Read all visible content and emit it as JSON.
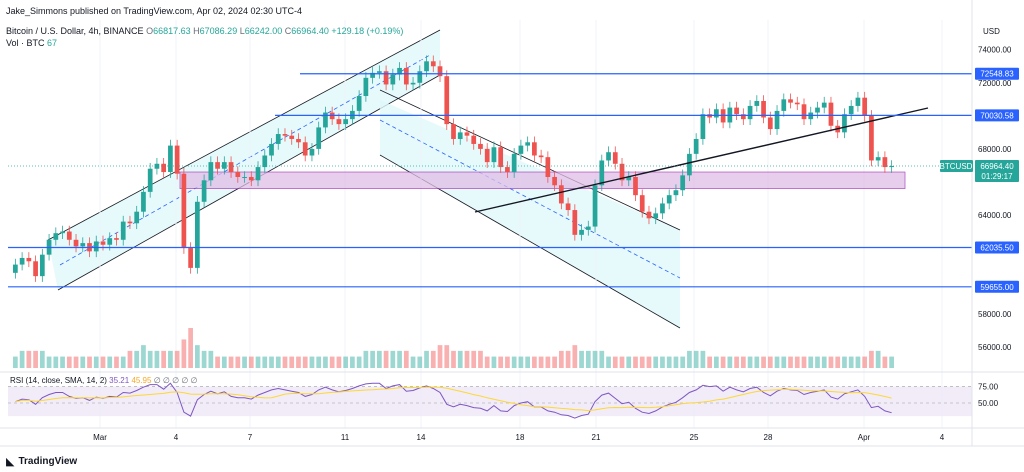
{
  "header": {
    "publisher": "Jake_Simmons published on TradingView.com, Apr 02, 2024 02:30 UTC-4",
    "symbol": "Bitcoin / U.S. Dollar, 4h, BINANCE",
    "ohlc": {
      "o_label": "O",
      "o": "66817.63",
      "h_label": "H",
      "h": "67086.29",
      "l_label": "L",
      "l": "66242.00",
      "c_label": "C",
      "c": "66964.40",
      "change": "+129.18 (+0.19%)"
    },
    "vol_label": "Vol · BTC",
    "vol_value": "67",
    "rsi_label": "RSI (14, close, SMA, 14, 2)",
    "rsi_value": "35.21",
    "rsi_ma": "45.95",
    "rsi_na": [
      "∅",
      "∅",
      "∅",
      "∅",
      "∅"
    ]
  },
  "currency": "USD",
  "footer_brand": "TradingView",
  "colors": {
    "up": "#26a69a",
    "down": "#ef5350",
    "hline": "#2962ff",
    "rsi": "#7e57c2",
    "rsi_ma": "#fdd835",
    "channel_fill": "#e0f7fa",
    "zone_fill": "#e1bee7",
    "zone_border": "#9c27b0"
  },
  "chart_data": {
    "type": "candlestick",
    "title": "Bitcoin / U.S. Dollar, 4h, BINANCE",
    "x_tick_labels": [
      "Mar",
      "4",
      "7",
      "11",
      "14",
      "18",
      "21",
      "25",
      "28",
      "Apr",
      "4"
    ],
    "price_ticks": [
      "74000.00",
      "72000.00",
      "68000.00",
      "64000.00",
      "58000.00",
      "56000.00"
    ],
    "price_range": [
      54500,
      75800
    ],
    "horizontal_levels": [
      {
        "label": "72548.83",
        "value": 72548.83
      },
      {
        "label": "70030.58",
        "value": 70030.58
      },
      {
        "label": "62035.50",
        "value": 62035.5
      },
      {
        "label": "59655.00",
        "value": 59655.0
      }
    ],
    "last_price": {
      "symbol": "BTCUSD",
      "value": "66964.40",
      "countdown": "01:29:17",
      "price": 66964.4
    },
    "support_zone": {
      "low": 65600,
      "high": 66600
    },
    "close_series": [
      61000,
      61400,
      61200,
      60300,
      61600,
      62500,
      62900,
      63000,
      62500,
      62100,
      62300,
      61800,
      62400,
      62200,
      62600,
      62500,
      63600,
      63500,
      64200,
      65400,
      66800,
      67100,
      66600,
      68200,
      66500,
      62000,
      60800,
      64800,
      66100,
      67200,
      66800,
      67200,
      66600,
      66300,
      66300,
      66100,
      66900,
      67600,
      68300,
      68900,
      68800,
      68600,
      68400,
      67600,
      68000,
      69300,
      70200,
      69800,
      69500,
      69800,
      70300,
      71200,
      72300,
      72600,
      72700,
      71900,
      72500,
      72900,
      71900,
      72000,
      72700,
      73300,
      73000,
      72400,
      69500,
      68600,
      69000,
      68800,
      68300,
      68000,
      67200,
      68100,
      66900,
      66600,
      67700,
      68200,
      68400,
      67600,
      67500,
      66300,
      65800,
      64700,
      64300,
      62800,
      63100,
      63300,
      65800,
      67300,
      67800,
      67100,
      66100,
      66300,
      65200,
      64200,
      63800,
      64100,
      64700,
      65200,
      65500,
      66400,
      67700,
      68600,
      70100,
      69900,
      70400,
      69600,
      70500,
      70100,
      69800,
      70600,
      70900,
      69900,
      69200,
      70300,
      71000,
      70800,
      70700,
      69800,
      70200,
      70500,
      70800,
      69400,
      69000,
      70100,
      70600,
      71100,
      70000,
      67300,
      67500,
      66900,
      66964
    ],
    "volume_relative": [
      2,
      3,
      3,
      3,
      3,
      2,
      2,
      2,
      2,
      2,
      2,
      2,
      2,
      2,
      2,
      2,
      2,
      3,
      3,
      4,
      3,
      3,
      3,
      3,
      3,
      5,
      7,
      4,
      3,
      3,
      2,
      2,
      2,
      2,
      2,
      2,
      2,
      2,
      2,
      2,
      2,
      2,
      2,
      2,
      2,
      2,
      2,
      2,
      2,
      2,
      2,
      2,
      3,
      3,
      3,
      3,
      3,
      3,
      3,
      2,
      2,
      3,
      3,
      4,
      4,
      3,
      3,
      3,
      3,
      3,
      2,
      2,
      2,
      2,
      2,
      2,
      2,
      2,
      2,
      2,
      2,
      3,
      3,
      4,
      3,
      3,
      3,
      3,
      2,
      2,
      2,
      2,
      2,
      2,
      2,
      2,
      2,
      2,
      2,
      2,
      3,
      3,
      3,
      2,
      2,
      2,
      2,
      2,
      2,
      2,
      2,
      2,
      2,
      2,
      2,
      2,
      2,
      2,
      2,
      2,
      2,
      2,
      2,
      2,
      2,
      2,
      2,
      3,
      3,
      2,
      2
    ],
    "rsi": {
      "label": "RSI (14, close, SMA, 14, 2)",
      "levels": [
        "75.00",
        "50.00"
      ],
      "level_values": [
        75,
        50
      ],
      "range": [
        15,
        85
      ],
      "values": [
        52,
        56,
        55,
        48,
        58,
        63,
        66,
        66,
        60,
        57,
        58,
        54,
        59,
        57,
        60,
        59,
        66,
        65,
        69,
        74,
        78,
        78,
        71,
        80,
        66,
        36,
        30,
        55,
        63,
        68,
        64,
        67,
        60,
        58,
        58,
        56,
        62,
        66,
        70,
        72,
        70,
        68,
        66,
        60,
        63,
        70,
        74,
        70,
        67,
        69,
        72,
        76,
        79,
        80,
        80,
        72,
        76,
        78,
        68,
        69,
        73,
        76,
        72,
        66,
        48,
        44,
        48,
        46,
        43,
        42,
        38,
        46,
        38,
        37,
        46,
        50,
        52,
        44,
        44,
        38,
        36,
        32,
        31,
        27,
        31,
        33,
        52,
        62,
        65,
        57,
        49,
        51,
        42,
        36,
        34,
        38,
        44,
        48,
        51,
        58,
        66,
        70,
        77,
        75,
        76,
        68,
        74,
        70,
        67,
        72,
        74,
        66,
        61,
        68,
        72,
        70,
        69,
        63,
        66,
        68,
        70,
        59,
        56,
        64,
        67,
        70,
        60,
        43,
        45,
        38,
        35.21
      ]
    }
  }
}
